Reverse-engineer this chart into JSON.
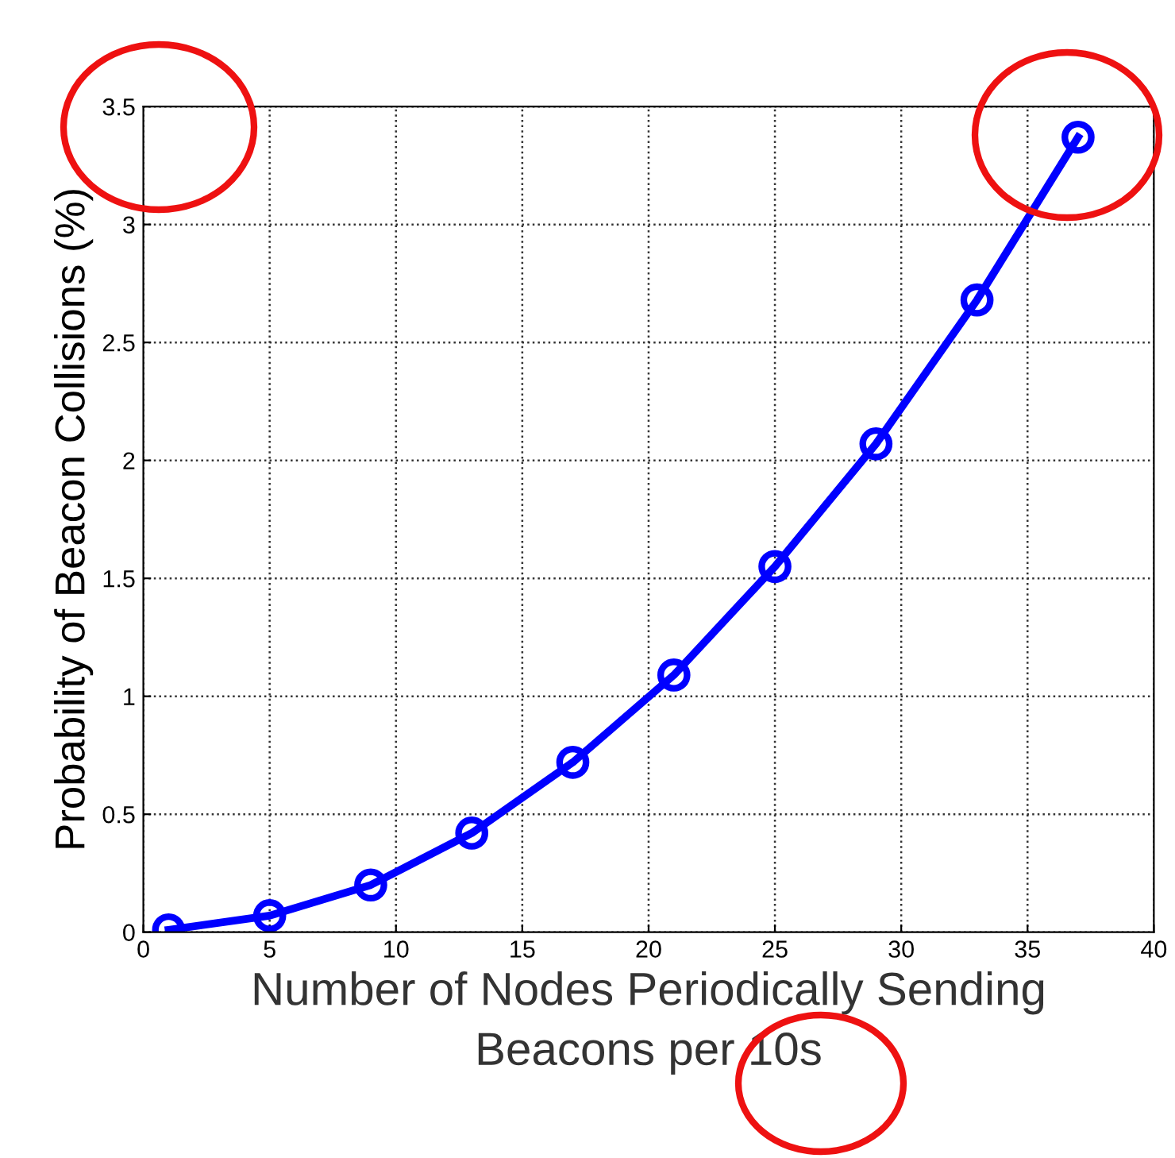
{
  "chart_data": {
    "type": "line",
    "xlabel": "Number of Nodes Periodically Sending\nBeacons per 10s",
    "ylabel": "Probability of Beacon Collisions (%)",
    "x": [
      1,
      5,
      9,
      13,
      17,
      21,
      25,
      29,
      33,
      37
    ],
    "series": [
      {
        "color": "#0000ff",
        "values": [
          0.01,
          0.07,
          0.2,
          0.42,
          0.72,
          1.09,
          1.55,
          2.07,
          2.68,
          3.37
        ]
      }
    ],
    "xlim": [
      0,
      40
    ],
    "xticks": [
      0,
      5,
      10,
      15,
      20,
      25,
      30,
      35,
      40
    ],
    "ylim": [
      0,
      3.5
    ],
    "yticks": [
      0,
      0.5,
      1,
      1.5,
      2,
      2.5,
      3,
      3.5
    ],
    "grid": true,
    "marker": "circle",
    "line_style": "solid"
  }
}
